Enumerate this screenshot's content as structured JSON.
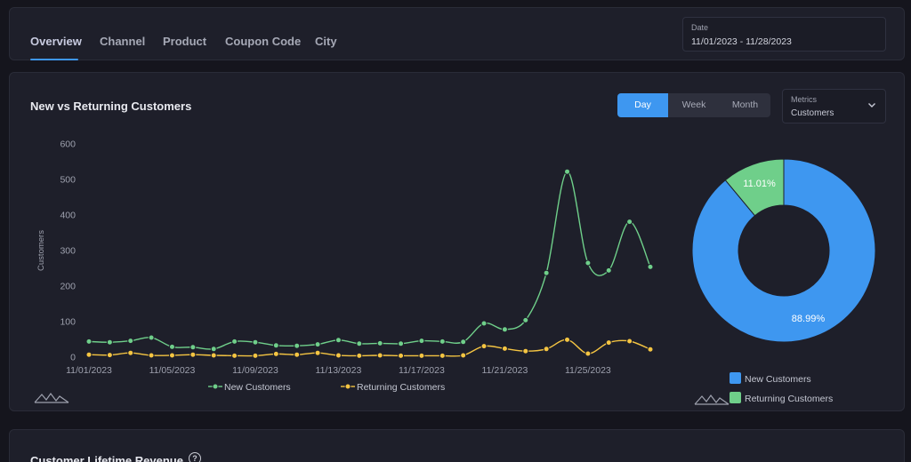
{
  "tabs": [
    {
      "label": "Overview",
      "active": true
    },
    {
      "label": "Channel",
      "active": false
    },
    {
      "label": "Product",
      "active": false
    },
    {
      "label": "Coupon Code",
      "active": false
    },
    {
      "label": "City",
      "active": false
    }
  ],
  "date_filter": {
    "label": "Date",
    "value": "11/01/2023 - 11/28/2023"
  },
  "chart_card": {
    "title": "New vs Returning Customers",
    "granularity": [
      {
        "label": "Day",
        "active": true
      },
      {
        "label": "Week",
        "active": false
      },
      {
        "label": "Month",
        "active": false
      }
    ],
    "metrics": {
      "label": "Metrics",
      "value": "Customers"
    }
  },
  "colors": {
    "new": "#6fcf8a",
    "returning": "#f5c542",
    "pie_new": "#3e97f0",
    "pie_returning": "#6fcf8a",
    "accent": "#3e97f0"
  },
  "chart_data": [
    {
      "type": "line",
      "ylabel": "Customers",
      "xlabel": "",
      "ylim": [
        0,
        600
      ],
      "yticks": [
        0,
        100,
        200,
        300,
        400,
        500,
        600
      ],
      "x": [
        "11/01/2023",
        "11/02/2023",
        "11/03/2023",
        "11/04/2023",
        "11/05/2023",
        "11/06/2023",
        "11/07/2023",
        "11/08/2023",
        "11/09/2023",
        "11/10/2023",
        "11/11/2023",
        "11/12/2023",
        "11/13/2023",
        "11/14/2023",
        "11/15/2023",
        "11/16/2023",
        "11/17/2023",
        "11/18/2023",
        "11/19/2023",
        "11/20/2023",
        "11/21/2023",
        "11/22/2023",
        "11/23/2023",
        "11/24/2023",
        "11/25/2023",
        "11/26/2023",
        "11/27/2023",
        "11/28/2023"
      ],
      "xtick_labels": [
        "11/01/2023",
        "11/05/2023",
        "11/09/2023",
        "11/13/2023",
        "11/17/2023",
        "11/21/2023",
        "11/25/2023"
      ],
      "series": [
        {
          "name": "New Customers",
          "values": [
            44,
            42,
            46,
            55,
            29,
            28,
            23,
            44,
            42,
            33,
            32,
            36,
            48,
            38,
            39,
            38,
            46,
            44,
            43,
            95,
            78,
            104,
            237,
            522,
            265,
            244,
            381,
            254
          ]
        },
        {
          "name": "Returning Customers",
          "values": [
            7,
            6,
            12,
            5,
            5,
            7,
            5,
            4,
            4,
            9,
            7,
            12,
            5,
            4,
            5,
            4,
            4,
            4,
            5,
            31,
            24,
            17,
            23,
            49,
            10,
            41,
            45,
            22
          ]
        }
      ],
      "legend": "bottom-center"
    },
    {
      "type": "pie",
      "donut": true,
      "labels": [
        "New Customers",
        "Returning Customers"
      ],
      "values": [
        88.99,
        11.01
      ],
      "data_labels": [
        "88.99%",
        "11.01%"
      ],
      "legend": "bottom-right"
    }
  ],
  "bottom_card": {
    "title": "Customer Lifetime Revenue",
    "help": "?"
  }
}
